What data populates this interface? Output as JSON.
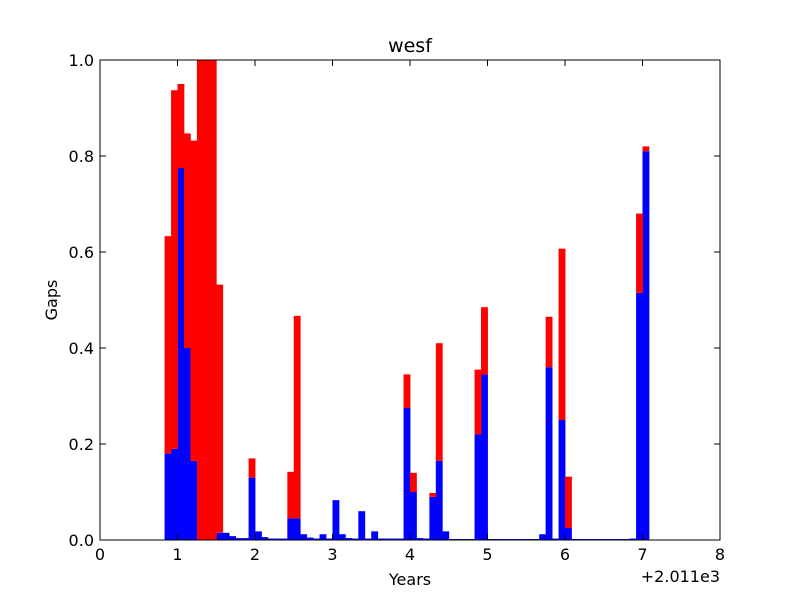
{
  "chart_data": {
    "type": "bar",
    "stacked": true,
    "title": "wesf",
    "xlabel": "Years",
    "ylabel": "Gaps",
    "xlim": [
      0,
      8
    ],
    "ylim": [
      0,
      1.0
    ],
    "x_ticks": [
      "0",
      "1",
      "2",
      "3",
      "4",
      "5",
      "6",
      "7",
      "8"
    ],
    "x_offset_label": "+2.011e3",
    "y_ticks": [
      "0.0",
      "0.2",
      "0.4",
      "0.6",
      "0.8",
      "1.0"
    ],
    "grid": false,
    "bar_width": 0.0833,
    "x": [
      0.833,
      0.917,
      1.0,
      1.083,
      1.167,
      1.25,
      1.333,
      1.417,
      1.5,
      1.583,
      1.667,
      1.75,
      1.833,
      1.917,
      2.0,
      2.083,
      2.167,
      2.25,
      2.333,
      2.417,
      2.5,
      2.583,
      2.667,
      2.75,
      2.833,
      2.917,
      3.0,
      3.083,
      3.167,
      3.25,
      3.333,
      3.417,
      3.5,
      3.583,
      3.667,
      3.75,
      3.833,
      3.917,
      4.0,
      4.083,
      4.167,
      4.25,
      4.333,
      4.417,
      4.5,
      4.583,
      4.667,
      4.75,
      4.833,
      4.917,
      5.0,
      5.083,
      5.167,
      5.25,
      5.333,
      5.417,
      5.5,
      5.583,
      5.667,
      5.75,
      5.833,
      5.917,
      6.0,
      6.083,
      6.167,
      6.25,
      6.333,
      6.417,
      6.5,
      6.583,
      6.667,
      6.75,
      6.833,
      6.917,
      7.0
    ],
    "series": [
      {
        "color": "#0000ff",
        "values": [
          0.18,
          0.19,
          0.775,
          0.4,
          0.165,
          0,
          0,
          0,
          0.015,
          0.015,
          0.008,
          0.004,
          0.004,
          0.13,
          0.018,
          0.006,
          0.003,
          0.003,
          0.003,
          0.045,
          0.045,
          0.012,
          0.005,
          0.003,
          0.012,
          0.003,
          0.083,
          0.012,
          0.004,
          0.003,
          0.06,
          0.003,
          0.018,
          0.003,
          0.003,
          0.003,
          0.003,
          0.275,
          0.1,
          0.004,
          0.003,
          0.09,
          0.165,
          0.018,
          0.002,
          0.002,
          0.002,
          0.002,
          0.22,
          0.345,
          0.002,
          0.002,
          0.002,
          0.002,
          0.002,
          0.002,
          0.002,
          0.002,
          0.012,
          0.36,
          0.003,
          0.25,
          0.025,
          0.002,
          0.002,
          0.002,
          0.002,
          0.002,
          0.002,
          0.002,
          0.002,
          0.002,
          0.003,
          0.515,
          0.81
        ]
      },
      {
        "color": "#ff0000",
        "values": [
          0.453,
          0.747,
          0.175,
          0.447,
          0.667,
          1.0,
          1.0,
          1.0,
          0.517,
          0,
          0,
          0,
          0,
          0.04,
          0,
          0,
          0,
          0,
          0,
          0.097,
          0.422,
          0,
          0,
          0,
          0,
          0,
          0,
          0,
          0,
          0,
          0,
          0,
          0,
          0,
          0,
          0,
          0,
          0.07,
          0.04,
          0,
          0,
          0.008,
          0.245,
          0,
          0,
          0,
          0,
          0,
          0.135,
          0.14,
          0,
          0,
          0,
          0,
          0,
          0,
          0,
          0,
          0,
          0.105,
          0,
          0.357,
          0.107,
          0,
          0,
          0,
          0,
          0,
          0,
          0,
          0,
          0,
          0,
          0.165,
          0.01
        ]
      }
    ]
  }
}
